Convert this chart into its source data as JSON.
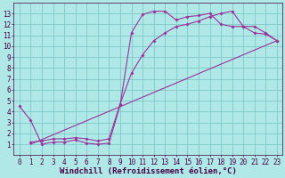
{
  "background_color": "#b0e8e8",
  "grid_color": "#80c8c8",
  "line_color": "#993399",
  "marker_style": "D",
  "marker_size": 1.8,
  "line_width": 0.8,
  "xlabel": "Windchill (Refroidissement éolien,°C)",
  "xlabel_fontsize": 6.5,
  "xlabel_color": "#440044",
  "tick_fontsize": 5.5,
  "tick_color": "#440044",
  "xlim": [
    -0.5,
    23.5
  ],
  "ylim": [
    0,
    14
  ],
  "xticks": [
    0,
    1,
    2,
    3,
    4,
    5,
    6,
    7,
    8,
    9,
    10,
    11,
    12,
    13,
    14,
    15,
    16,
    17,
    18,
    19,
    20,
    21,
    22,
    23
  ],
  "yticks": [
    1,
    2,
    3,
    4,
    5,
    6,
    7,
    8,
    9,
    10,
    11,
    12,
    13
  ],
  "series0_x": [
    0,
    1,
    2,
    3,
    4,
    5,
    6,
    7,
    8,
    9,
    10,
    11,
    12,
    13,
    14,
    15,
    16,
    17,
    18,
    19,
    20,
    21,
    22,
    23
  ],
  "series0_y": [
    4.5,
    3.2,
    1.0,
    1.2,
    1.2,
    1.4,
    1.1,
    1.0,
    1.1,
    4.6,
    11.2,
    12.9,
    13.2,
    13.2,
    12.4,
    12.7,
    12.8,
    13.0,
    12.0,
    11.8,
    11.8,
    11.2,
    11.1,
    10.5
  ],
  "series1_x": [
    1,
    2,
    3,
    4,
    5,
    6,
    7,
    8,
    9,
    10,
    11,
    12,
    13,
    14,
    15,
    16,
    17,
    18,
    19,
    20,
    21,
    22,
    23
  ],
  "series1_y": [
    1.2,
    1.3,
    1.5,
    1.5,
    1.6,
    1.5,
    1.3,
    1.5,
    4.7,
    7.5,
    9.2,
    10.5,
    11.2,
    11.8,
    12.0,
    12.3,
    12.7,
    13.0,
    13.2,
    11.8,
    11.8,
    11.2,
    10.5
  ],
  "series2_x": [
    1,
    23
  ],
  "series2_y": [
    1.0,
    10.5
  ]
}
